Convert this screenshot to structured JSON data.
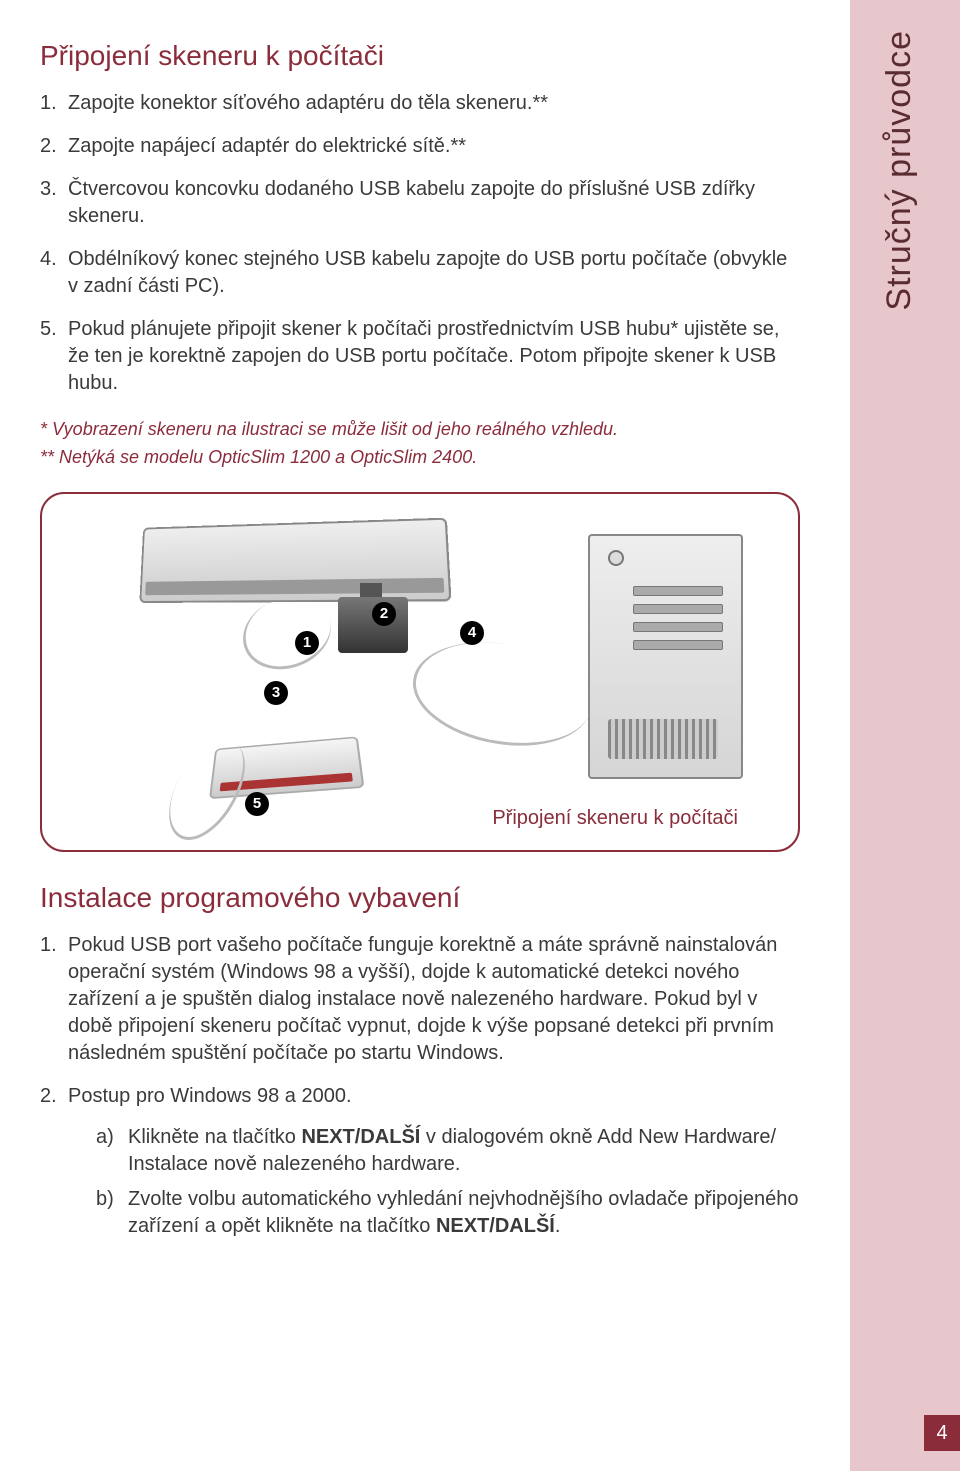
{
  "side_tab": "Stručný průvodce",
  "section1": {
    "title": "Připojení skeneru k počítači",
    "steps": [
      "Zapojte konektor síťového adaptéru do těla skeneru.**",
      "Zapojte napájecí adaptér do elektrické sítě.**",
      "Čtvercovou koncovku dodaného USB kabelu zapojte do příslušné USB zdířky skeneru.",
      "Obdélníkový konec stejného USB kabelu zapojte do USB portu počítače (obvykle v zadní části PC).",
      "Pokud plánujete připojit skener k počítači prostřednictvím USB hubu* ujistěte se, že ten je korektně zapojen do USB portu počítače. Potom připojte skener k USB hubu."
    ],
    "note1": "* Vyobrazení skeneru na ilustraci se může lišit od jeho reálného vzhledu.",
    "note2": "** Netýká se modelu OpticSlim 1200 a OpticSlim 2400."
  },
  "diagram": {
    "caption": "Připojení skeneru k počítači",
    "badges": [
      "1",
      "2",
      "3",
      "4",
      "5"
    ]
  },
  "section2": {
    "title": "Instalace programového vybavení",
    "steps": [
      "Pokud USB port vašeho počítače funguje korektně a máte správně nainstalován operační systém (Windows 98 a vyšší), dojde k automatické detekci nového zařízení a je spuštěn dialog instalace nově nalezeného hardware. Pokud byl v době připojení skeneru počítač vypnut, dojde k výše popsané detekci při prvním následném spuštění počítače po startu Windows.",
      "Postup pro Windows 98 a 2000."
    ],
    "sub": {
      "a_pre": "Klikněte na tlačítko ",
      "a_bold": "NEXT/DALŠÍ",
      "a_post": " v dialogovém okně Add New Hardware/ Instalace nově nalezeného hardware.",
      "b_pre": "Zvolte volbu automatického vyhledání nejvhodnějšího ovladače připojeného zařízení a opět klikněte na tlačítko ",
      "b_bold": "NEXT/DALŠÍ",
      "b_post": "."
    }
  },
  "page_number": "4",
  "colors": {
    "accent": "#8b2c3b",
    "sidebar_bg": "#e7c7cb",
    "text": "#3a3a3a"
  }
}
